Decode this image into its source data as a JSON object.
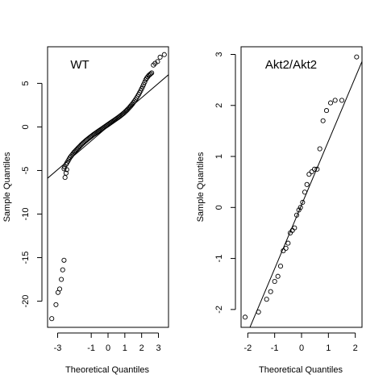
{
  "chart_data": [
    {
      "type": "scatter",
      "subtype": "qq-plot",
      "title": "WT",
      "xlabel": "Theoretical Quantiles",
      "ylabel": "Sample Quantiles",
      "xlim": [
        -3.6,
        3.6
      ],
      "ylim": [
        -23,
        9.2
      ],
      "xticks": [
        -3,
        -1,
        0,
        1,
        2,
        3
      ],
      "xtick_labels": [
        "-3",
        "-1",
        "0",
        "1",
        "2",
        "3"
      ],
      "yticks": [
        -20,
        -15,
        -10,
        -5,
        0,
        5
      ],
      "ytick_labels": [
        "-20",
        "-15",
        "-10",
        "-5",
        "0",
        "5"
      ],
      "grid": false,
      "legend": "none",
      "reference_line": {
        "intercept": 0.05,
        "slope": 1.65
      },
      "series": [
        {
          "x": [
            -3.35,
            -3.1,
            -2.98,
            -2.88,
            -2.78,
            -2.7,
            -2.62,
            -2.56,
            -2.5,
            -2.46,
            -2.62,
            -2.58,
            -2.5,
            -2.44,
            -2.38,
            -2.32,
            -2.26,
            -2.2,
            -2.14,
            -2.08,
            -2.02,
            -1.96,
            -1.9,
            -1.84,
            -1.78,
            -1.72,
            -1.66,
            -1.6,
            -1.54,
            -1.48,
            -1.42,
            -1.36,
            -1.3,
            -1.24,
            -1.18,
            -1.12,
            -1.06,
            -1.0,
            -0.94,
            -0.88,
            -0.82,
            -0.76,
            -0.7,
            -0.64,
            -0.58,
            -0.52,
            -0.46,
            -0.4,
            -0.34,
            -0.28,
            -0.22,
            -0.16,
            -0.1,
            -0.04,
            0.02,
            0.08,
            0.14,
            0.2,
            0.26,
            0.32,
            0.38,
            0.44,
            0.5,
            0.56,
            0.62,
            0.68,
            0.74,
            0.8,
            0.86,
            0.92,
            0.98,
            1.04,
            1.1,
            1.16,
            1.22,
            1.28,
            1.34,
            1.4,
            1.46,
            1.52,
            1.58,
            1.64,
            1.7,
            1.76,
            1.82,
            1.88,
            1.94,
            2.0,
            2.06,
            2.12,
            2.18,
            2.24,
            2.3,
            2.36,
            2.42,
            2.48,
            2.54,
            2.6,
            2.7,
            2.8,
            2.95,
            3.1,
            3.35
          ],
          "y": [
            -22.0,
            -20.4,
            -19.0,
            -18.6,
            -17.5,
            -16.4,
            -15.3,
            -5.8,
            -5.3,
            -4.9,
            -4.8,
            -4.6,
            -4.3,
            -4.1,
            -3.9,
            -3.7,
            -3.5,
            -3.35,
            -3.2,
            -3.05,
            -2.9,
            -2.78,
            -2.66,
            -2.54,
            -2.42,
            -2.3,
            -2.18,
            -2.06,
            -1.95,
            -1.84,
            -1.74,
            -1.64,
            -1.54,
            -1.44,
            -1.35,
            -1.26,
            -1.17,
            -1.08,
            -0.99,
            -0.9,
            -0.82,
            -0.74,
            -0.66,
            -0.58,
            -0.5,
            -0.42,
            -0.34,
            -0.26,
            -0.18,
            -0.1,
            -0.02,
            0.06,
            0.14,
            0.22,
            0.3,
            0.38,
            0.46,
            0.54,
            0.62,
            0.7,
            0.78,
            0.86,
            0.94,
            1.02,
            1.1,
            1.19,
            1.28,
            1.37,
            1.46,
            1.56,
            1.66,
            1.77,
            1.88,
            2.0,
            2.12,
            2.25,
            2.38,
            2.52,
            2.66,
            2.82,
            2.98,
            3.15,
            3.33,
            3.52,
            3.72,
            3.93,
            4.15,
            4.38,
            4.62,
            4.87,
            5.13,
            5.4,
            5.6,
            5.75,
            5.9,
            6.0,
            6.1,
            6.2,
            7.1,
            7.3,
            7.5,
            8.0,
            8.3
          ]
        }
      ]
    },
    {
      "type": "scatter",
      "subtype": "qq-plot",
      "title": "Akt2/Akt2",
      "xlabel": "Theoretical Quantiles",
      "ylabel": "Sample Quantiles",
      "xlim": [
        -2.25,
        2.25
      ],
      "ylim": [
        -2.35,
        3.15
      ],
      "xticks": [
        -2,
        -1,
        0,
        1,
        2
      ],
      "xtick_labels": [
        "-2",
        "-1",
        "0",
        "1",
        "2"
      ],
      "yticks": [
        -2,
        -1,
        0,
        1,
        2,
        3
      ],
      "ytick_labels": [
        "-2",
        "-1",
        "0",
        "1",
        "2",
        "3"
      ],
      "grid": false,
      "legend": "none",
      "reference_line": {
        "intercept": 0.05,
        "slope": 1.25
      },
      "series": [
        {
          "x": [
            -2.1,
            -1.6,
            -1.3,
            -1.15,
            -1.0,
            -0.88,
            -0.78,
            -0.68,
            -0.58,
            -0.5,
            -0.42,
            -0.34,
            -0.26,
            -0.18,
            -0.1,
            -0.04,
            0.04,
            0.12,
            0.2,
            0.28,
            0.38,
            0.48,
            0.58,
            0.68,
            0.8,
            0.93,
            1.08,
            1.25,
            1.5,
            2.05
          ],
          "y": [
            -2.15,
            -2.05,
            -1.8,
            -1.65,
            -1.45,
            -1.35,
            -1.15,
            -0.85,
            -0.8,
            -0.7,
            -0.5,
            -0.45,
            -0.4,
            -0.15,
            -0.05,
            0.0,
            0.1,
            0.3,
            0.45,
            0.65,
            0.7,
            0.75,
            0.75,
            1.15,
            1.7,
            1.9,
            2.05,
            2.1,
            2.1,
            2.95
          ]
        }
      ]
    }
  ]
}
